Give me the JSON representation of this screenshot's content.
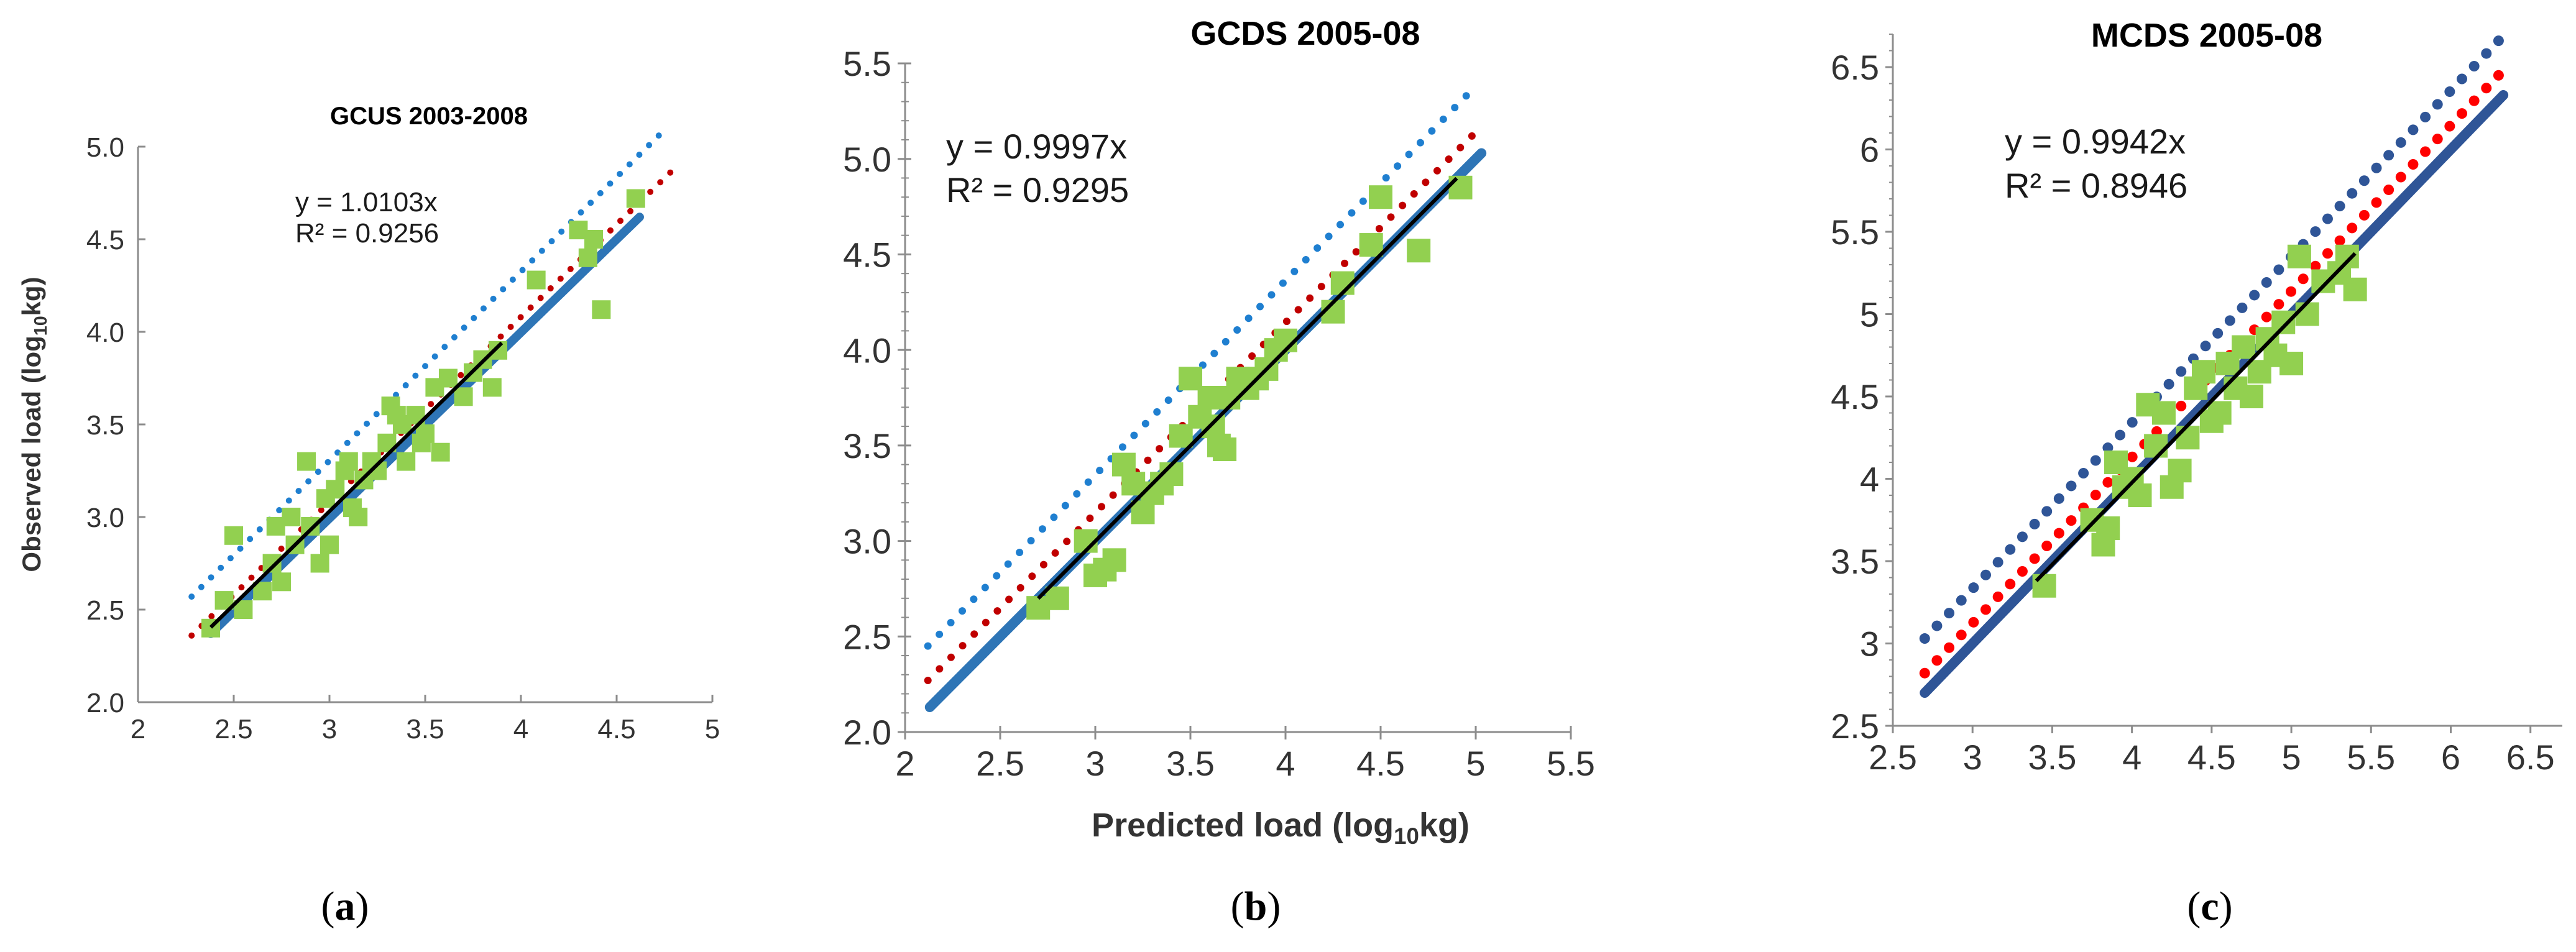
{
  "colors": {
    "green": "#92D050",
    "blue": "#2E75B6",
    "dotBlue": "#1F7FD0",
    "darkRed": "#C00000",
    "red": "#FF0000",
    "navy": "#2F5597",
    "black": "#000000"
  },
  "chart_data": [
    {
      "type": "scatter",
      "title": "GCUS 2003-2008",
      "ylabel": "Observed load (log10kg)",
      "ylabel_parts": [
        "Observed load (log",
        "10",
        "kg)"
      ],
      "xlabel": "",
      "panel_label": {
        "open": "(",
        "letter": "a",
        "close": ")"
      },
      "xlim": [
        2,
        5
      ],
      "ylim": [
        2.0,
        5.0
      ],
      "xticks": [
        2,
        2.5,
        3,
        3.5,
        4,
        4.5,
        5
      ],
      "xtick_labels": [
        "2",
        "2.5",
        "3",
        "3.5",
        "4",
        "4.5",
        "5"
      ],
      "yticks": [
        2.0,
        2.5,
        3.0,
        3.5,
        4.0,
        4.5,
        5.0
      ],
      "ytick_labels": [
        "2.0",
        "2.5",
        "3.0",
        "3.5",
        "4.0",
        "4.5",
        "5.0"
      ],
      "equation": "y = 1.0103x",
      "r_squared": "R² = 0.9256",
      "regression": {
        "x": [
          2.38,
          3.9
        ],
        "slope": 1.0103
      },
      "lines": [
        {
          "name": "upper bound",
          "style": "dotted",
          "color": "dotBlue",
          "x": [
            2.28,
            4.72
          ],
          "y": [
            2.57,
            5.06
          ]
        },
        {
          "name": "lower bound",
          "style": "dotted",
          "color": "darkRed",
          "x": [
            2.28,
            4.78
          ],
          "y": [
            2.36,
            4.86
          ]
        },
        {
          "name": "1:1 line",
          "style": "solid-thick",
          "color": "blue",
          "x": [
            2.38,
            4.62
          ],
          "y": [
            2.37,
            4.62
          ]
        }
      ],
      "points": [
        [
          2.38,
          2.4
        ],
        [
          2.45,
          2.55
        ],
        [
          2.5,
          2.9
        ],
        [
          2.55,
          2.5
        ],
        [
          2.65,
          2.6
        ],
        [
          2.7,
          2.75
        ],
        [
          2.72,
          2.95
        ],
        [
          2.75,
          2.65
        ],
        [
          2.8,
          3.0
        ],
        [
          2.82,
          2.85
        ],
        [
          2.88,
          3.3
        ],
        [
          2.9,
          2.95
        ],
        [
          2.95,
          2.75
        ],
        [
          2.98,
          3.1
        ],
        [
          3.0,
          2.85
        ],
        [
          3.03,
          3.15
        ],
        [
          3.08,
          3.25
        ],
        [
          3.1,
          3.3
        ],
        [
          3.12,
          3.05
        ],
        [
          3.15,
          3.0
        ],
        [
          3.18,
          3.2
        ],
        [
          3.22,
          3.3
        ],
        [
          3.25,
          3.25
        ],
        [
          3.3,
          3.4
        ],
        [
          3.32,
          3.6
        ],
        [
          3.35,
          3.55
        ],
        [
          3.38,
          3.5
        ],
        [
          3.4,
          3.3
        ],
        [
          3.45,
          3.55
        ],
        [
          3.48,
          3.4
        ],
        [
          3.5,
          3.45
        ],
        [
          3.55,
          3.7
        ],
        [
          3.58,
          3.35
        ],
        [
          3.62,
          3.75
        ],
        [
          3.7,
          3.65
        ],
        [
          3.75,
          3.78
        ],
        [
          3.8,
          3.85
        ],
        [
          3.85,
          3.7
        ],
        [
          3.88,
          3.9
        ],
        [
          4.08,
          4.28
        ],
        [
          4.3,
          4.55
        ],
        [
          4.35,
          4.4
        ],
        [
          4.38,
          4.5
        ],
        [
          4.42,
          4.12
        ],
        [
          4.6,
          4.72
        ]
      ]
    },
    {
      "type": "scatter",
      "title": "GCDS 2005-08",
      "xlabel": "Predicted load (log10kg)",
      "xlabel_parts": [
        "Predicted load (log",
        "10",
        "kg)"
      ],
      "ylabel": "",
      "panel_label": {
        "open": "(",
        "letter": "b",
        "close": ")"
      },
      "xlim": [
        2,
        5.5
      ],
      "ylim": [
        2.0,
        5.5
      ],
      "xticks": [
        2,
        2.5,
        3,
        3.5,
        4,
        4.5,
        5,
        5.5
      ],
      "xtick_labels": [
        "2",
        "2.5",
        "3",
        "3.5",
        "4",
        "4.5",
        "5",
        "5.5"
      ],
      "yticks": [
        2.0,
        2.5,
        3.0,
        3.5,
        4.0,
        4.5,
        5.0,
        5.5
      ],
      "ytick_labels": [
        "2.0",
        "2.5",
        "3.0",
        "3.5",
        "4.0",
        "4.5",
        "5.0",
        "5.5"
      ],
      "equation": "y = 0.9997x",
      "r_squared": "R² = 0.9295",
      "regression": {
        "x": [
          2.7,
          4.9
        ],
        "slope": 0.9997
      },
      "lines": [
        {
          "name": "upper bound",
          "style": "dotted",
          "color": "dotBlue",
          "x": [
            2.12,
            4.95
          ],
          "y": [
            2.45,
            5.33
          ]
        },
        {
          "name": "lower bound",
          "style": "dotted",
          "color": "darkRed",
          "x": [
            2.12,
            4.98
          ],
          "y": [
            2.27,
            5.12
          ]
        },
        {
          "name": "1:1 line",
          "style": "solid-thick",
          "color": "blue",
          "x": [
            2.13,
            5.03
          ],
          "y": [
            2.13,
            5.03
          ]
        }
      ],
      "points": [
        [
          2.7,
          2.65
        ],
        [
          2.8,
          2.7
        ],
        [
          2.95,
          3.0
        ],
        [
          3.0,
          2.82
        ],
        [
          3.05,
          2.85
        ],
        [
          3.1,
          2.9
        ],
        [
          3.15,
          3.4
        ],
        [
          3.2,
          3.3
        ],
        [
          3.25,
          3.15
        ],
        [
          3.3,
          3.25
        ],
        [
          3.35,
          3.3
        ],
        [
          3.4,
          3.35
        ],
        [
          3.45,
          3.55
        ],
        [
          3.5,
          3.85
        ],
        [
          3.55,
          3.65
        ],
        [
          3.6,
          3.75
        ],
        [
          3.62,
          3.6
        ],
        [
          3.65,
          3.5
        ],
        [
          3.68,
          3.48
        ],
        [
          3.7,
          3.75
        ],
        [
          3.75,
          3.85
        ],
        [
          3.8,
          3.8
        ],
        [
          3.85,
          3.85
        ],
        [
          3.9,
          3.9
        ],
        [
          3.95,
          4.0
        ],
        [
          4.0,
          4.05
        ],
        [
          4.25,
          4.2
        ],
        [
          4.3,
          4.35
        ],
        [
          4.45,
          4.55
        ],
        [
          4.5,
          4.8
        ],
        [
          4.7,
          4.52
        ],
        [
          4.92,
          4.85
        ]
      ]
    },
    {
      "type": "scatter",
      "title": "MCDS 2005-08",
      "xlabel": "",
      "ylabel": "",
      "panel_label": {
        "open": "(",
        "letter": "c",
        "close": ")"
      },
      "xlim": [
        2.5,
        6.7
      ],
      "ylim": [
        2.5,
        6.7
      ],
      "xticks": [
        2.5,
        3,
        3.5,
        4,
        4.5,
        5,
        5.5,
        6,
        6.5
      ],
      "xtick_labels": [
        "2.5",
        "3",
        "3.5",
        "4",
        "4.5",
        "5",
        "5.5",
        "6",
        "6.5"
      ],
      "yticks": [
        2.5,
        3,
        3.5,
        4,
        4.5,
        5,
        5.5,
        6,
        6.5
      ],
      "ytick_labels": [
        "2.5",
        "3",
        "3.5",
        "4",
        "4.5",
        "5",
        "5.5",
        "6",
        "6.5"
      ],
      "equation": "y = 0.9942x",
      "r_squared": "R² = 0.8946",
      "regression": {
        "x": [
          3.4,
          5.4
        ],
        "slope": 0.9942
      },
      "lines": [
        {
          "name": "upper bound",
          "style": "dotted",
          "color": "navy",
          "x": [
            2.7,
            6.3
          ],
          "y": [
            3.03,
            6.66
          ]
        },
        {
          "name": "lower bound",
          "style": "dotted",
          "color": "red",
          "x": [
            2.7,
            6.3
          ],
          "y": [
            2.82,
            6.45
          ]
        },
        {
          "name": "1:1 line",
          "style": "solid-thick",
          "color": "navy",
          "x": [
            2.7,
            6.33
          ],
          "y": [
            2.7,
            6.33
          ]
        }
      ],
      "points": [
        [
          3.45,
          3.35
        ],
        [
          3.75,
          3.75
        ],
        [
          3.82,
          3.6
        ],
        [
          3.85,
          3.7
        ],
        [
          3.9,
          4.1
        ],
        [
          3.95,
          3.95
        ],
        [
          4.0,
          4.0
        ],
        [
          4.05,
          3.9
        ],
        [
          4.1,
          4.45
        ],
        [
          4.15,
          4.2
        ],
        [
          4.2,
          4.4
        ],
        [
          4.25,
          3.95
        ],
        [
          4.3,
          4.05
        ],
        [
          4.35,
          4.25
        ],
        [
          4.4,
          4.55
        ],
        [
          4.45,
          4.65
        ],
        [
          4.5,
          4.35
        ],
        [
          4.55,
          4.4
        ],
        [
          4.6,
          4.7
        ],
        [
          4.65,
          4.55
        ],
        [
          4.7,
          4.8
        ],
        [
          4.75,
          4.5
        ],
        [
          4.8,
          4.65
        ],
        [
          4.85,
          4.85
        ],
        [
          4.9,
          4.75
        ],
        [
          4.95,
          4.95
        ],
        [
          5.0,
          4.7
        ],
        [
          5.05,
          5.35
        ],
        [
          5.1,
          5.0
        ],
        [
          5.2,
          5.2
        ],
        [
          5.3,
          5.25
        ],
        [
          5.35,
          5.35
        ],
        [
          5.4,
          5.15
        ]
      ]
    }
  ]
}
